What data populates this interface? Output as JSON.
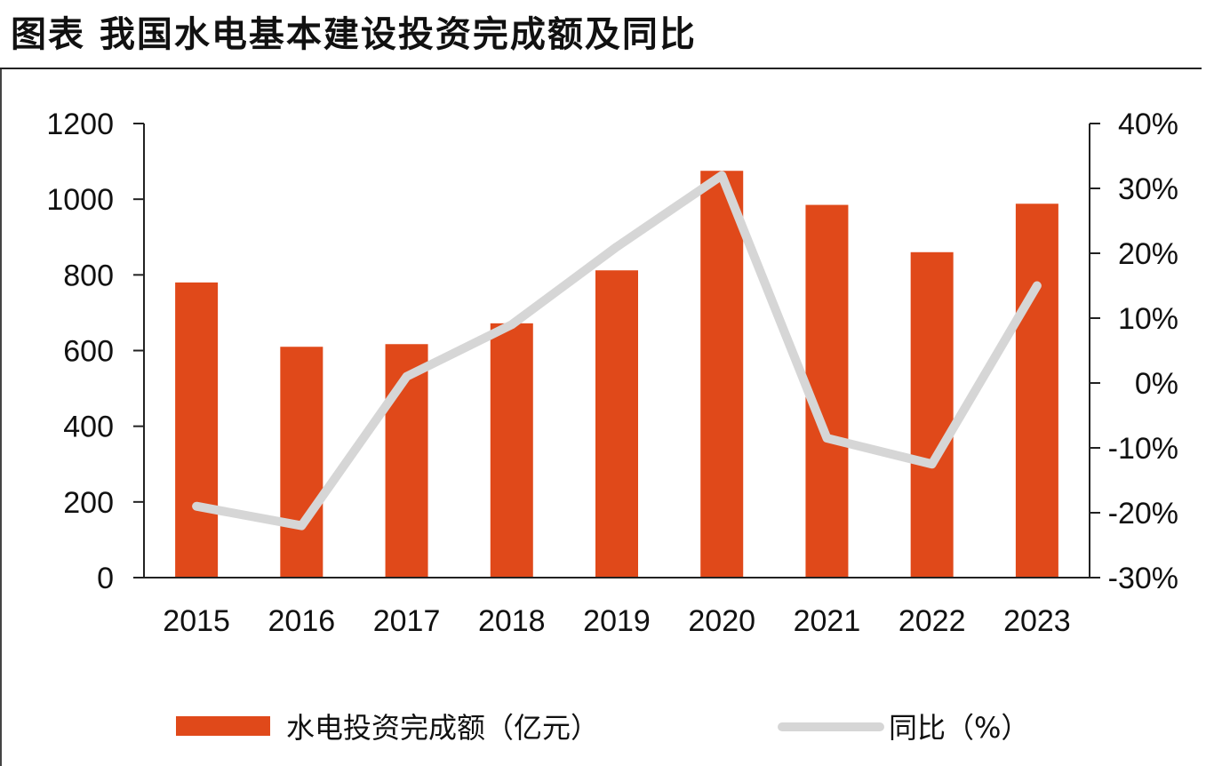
{
  "title": "图表  我国水电基本建设投资完成额及同比",
  "chart_data": {
    "type": "bar",
    "categories": [
      "2015",
      "2016",
      "2017",
      "2018",
      "2019",
      "2020",
      "2021",
      "2022",
      "2023"
    ],
    "series": [
      {
        "name": "水电投资完成额（亿元）",
        "type": "bar",
        "axis": "left",
        "values": [
          780,
          610,
          617,
          672,
          812,
          1075,
          985,
          860,
          988
        ]
      },
      {
        "name": "同比（%）",
        "type": "line",
        "axis": "right",
        "values": [
          -19,
          -22,
          1,
          9,
          21,
          32,
          -8.5,
          -12.5,
          15
        ]
      }
    ],
    "y_left": {
      "min": 0,
      "max": 1200,
      "ticks": [
        "0",
        "200",
        "400",
        "600",
        "800",
        "1000",
        "1200"
      ]
    },
    "y_right": {
      "min": -30,
      "max": 40,
      "ticks": [
        "-30%",
        "-20%",
        "-10%",
        "0%",
        "10%",
        "20%",
        "30%",
        "40%"
      ]
    },
    "legend_position": "bottom",
    "grid": false,
    "colors": {
      "bar": "#E0491A",
      "line": "#D6D6D6"
    }
  }
}
